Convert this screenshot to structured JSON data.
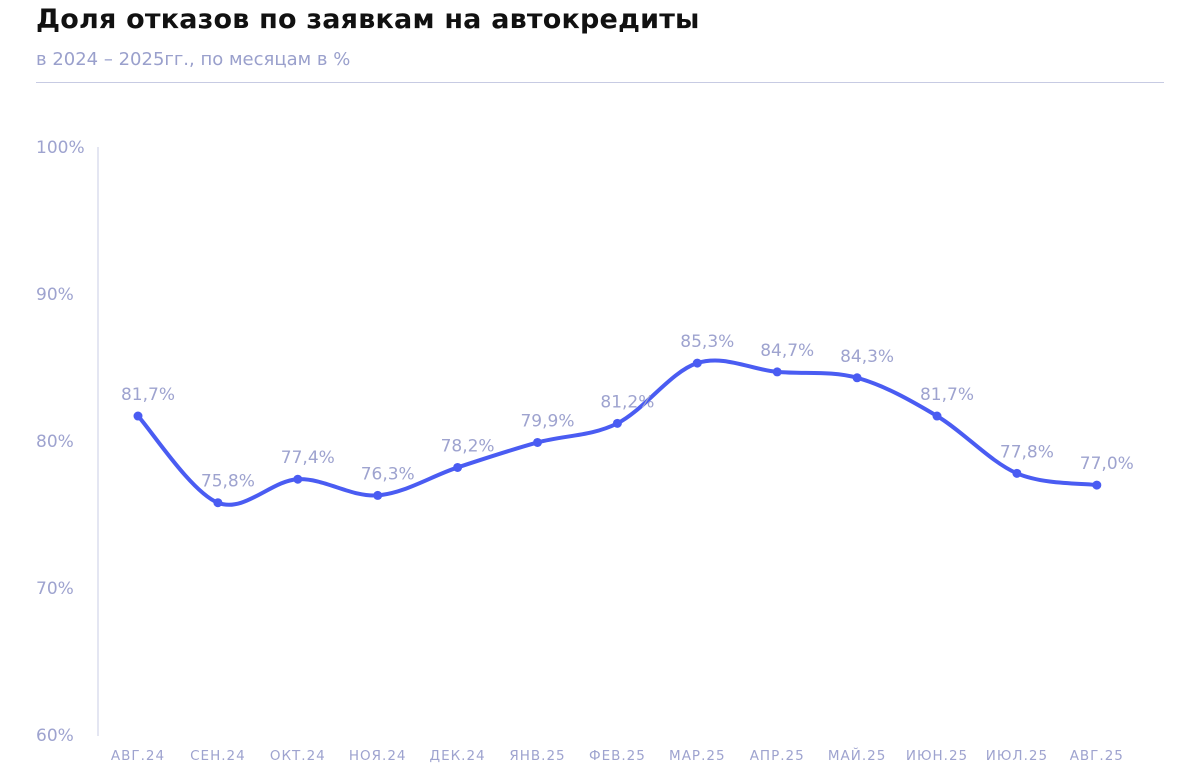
{
  "header": {
    "title": "Доля отказов по заявкам на автокредиты",
    "subtitle": "в 2024 – 2025гг., по месяцам в %"
  },
  "colors": {
    "line": "#4a5cf2",
    "axis_text": "#9ea3cf",
    "title": "#111111",
    "rule": "#c7cbe3"
  },
  "chart_data": {
    "type": "line",
    "title": "Доля отказов по заявкам на автокредиты",
    "subtitle": "в 2024 – 2025гг., по месяцам в %",
    "xlabel": "",
    "ylabel": "",
    "ylim": [
      60,
      100
    ],
    "yticks": [
      60,
      70,
      80,
      90,
      100
    ],
    "ytick_labels": [
      "60%",
      "70%",
      "80%",
      "90%",
      "100%"
    ],
    "grid": false,
    "legend": "none",
    "categories": [
      "АВГ.24",
      "СЕН.24",
      "ОКТ.24",
      "НОЯ.24",
      "ДЕК.24",
      "ЯНВ.25",
      "ФЕВ.25",
      "МАР.25",
      "АПР.25",
      "МАЙ.25",
      "ИЮН.25",
      "ИЮЛ.25",
      "АВГ.25"
    ],
    "series": [
      {
        "values": [
          81.7,
          75.8,
          77.4,
          76.3,
          78.2,
          79.9,
          81.2,
          85.3,
          84.7,
          84.3,
          81.7,
          77.8,
          77.0
        ],
        "labels": [
          "81,7%",
          "75,8%",
          "77,4%",
          "76,3%",
          "78,2%",
          "79,9%",
          "81,2%",
          "85,3%",
          "84,7%",
          "84,3%",
          "81,7%",
          "77,8%",
          "77,0%"
        ]
      }
    ]
  }
}
